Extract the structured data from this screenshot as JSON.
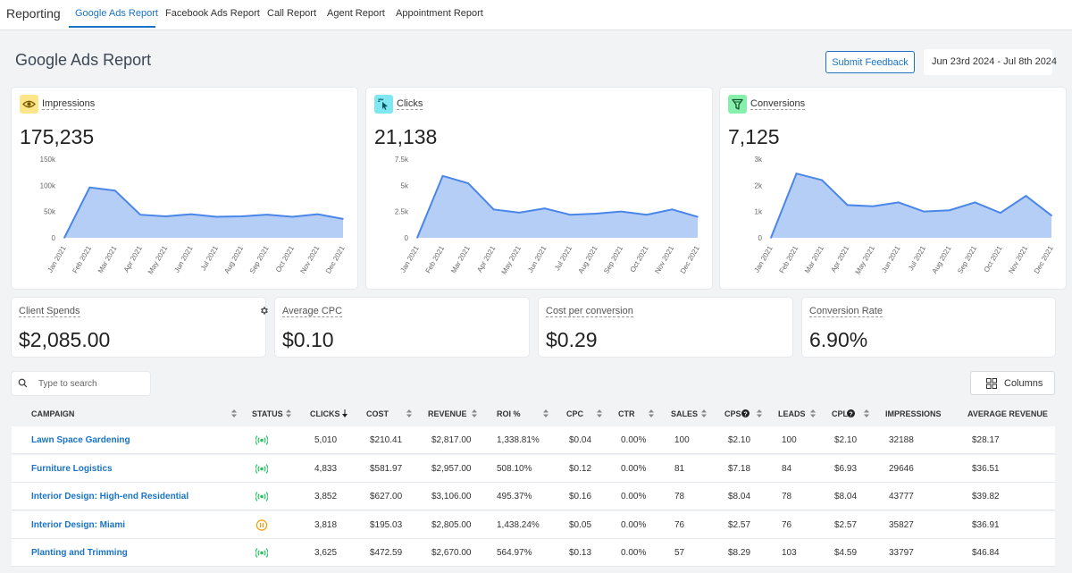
{
  "nav": {
    "brand": "Reporting",
    "tabs": [
      "Google Ads Report",
      "Facebook Ads Report",
      "Call Report",
      "Agent Report",
      "Appointment Report"
    ],
    "active_tab": "Google Ads Report"
  },
  "page": {
    "title": "Google Ads Report",
    "feedback_label": "Submit Feedback",
    "date_range": "Jun 23rd 2024 - Jul 8th 2024"
  },
  "colors": {
    "accent": "#1a73c6",
    "chart_line": "#4a86e8",
    "chart_fill": "#a7c5f4",
    "impressions_icon_bg": "#fde68a",
    "clicks_icon_bg": "#7ee7f2",
    "conversions_icon_bg": "#86efac",
    "status_active": "#22c55e",
    "status_paused": "#f59e0b"
  },
  "summary_cards": [
    {
      "label": "Impressions",
      "value": "175,235",
      "icon": "eye-icon"
    },
    {
      "label": "Clicks",
      "value": "21,138",
      "icon": "cursor-click-icon"
    },
    {
      "label": "Conversions",
      "value": "7,125",
      "icon": "funnel-icon"
    }
  ],
  "chart_data": [
    {
      "type": "area",
      "categories": [
        "Jan 2021",
        "Feb 2021",
        "Mar 2021",
        "Apr 2021",
        "May 2021",
        "Jun 2021",
        "Jul 2021",
        "Aug 2021",
        "Sep 2021",
        "Oct 2021",
        "Nov 2021",
        "Dec 2021"
      ],
      "values": [
        0,
        96000,
        90000,
        44000,
        41000,
        45000,
        40000,
        41000,
        44000,
        40000,
        45000,
        36000
      ],
      "yticks": [
        "0",
        "50k",
        "100k",
        "150k"
      ],
      "ylim": [
        0,
        150000
      ]
    },
    {
      "type": "area",
      "categories": [
        "Jan 2021",
        "Feb 2021",
        "Mar 2021",
        "Apr 2021",
        "May 2021",
        "Jun 2021",
        "Jul 2021",
        "Aug 2021",
        "Sep 2021",
        "Oct 2021",
        "Nov 2021",
        "Dec 2021"
      ],
      "values": [
        0,
        5900,
        5200,
        2700,
        2400,
        2800,
        2200,
        2300,
        2500,
        2200,
        2700,
        2000
      ],
      "yticks": [
        "0",
        "2.5k",
        "5k",
        "7.5k"
      ],
      "ylim": [
        0,
        7500
      ]
    },
    {
      "type": "area",
      "categories": [
        "Jan 2021",
        "Feb 2021",
        "Mar 2021",
        "Apr 2021",
        "May 2021",
        "Jun 2021",
        "Jul 2021",
        "Aug 2021",
        "Sep 2021",
        "Oct 2021",
        "Nov 2021",
        "Dec 2021"
      ],
      "values": [
        0,
        2450,
        2200,
        1250,
        1200,
        1350,
        1000,
        1050,
        1350,
        950,
        1600,
        850
      ],
      "yticks": [
        "0",
        "1k",
        "2k",
        "3k"
      ],
      "ylim": [
        0,
        3000
      ]
    }
  ],
  "metrics": [
    {
      "label": "Client Spends",
      "value": "$2,085.00"
    },
    {
      "label": "Average CPC",
      "value": "$0.10"
    },
    {
      "label": "Cost per conversion",
      "value": "$0.29"
    },
    {
      "label": "Conversion Rate",
      "value": "6.90%"
    }
  ],
  "table": {
    "search_placeholder": "Type to search",
    "columns_label": "Columns",
    "headers": [
      "CAMPAIGN",
      "STATUS",
      "CLICKS",
      "COST",
      "REVENUE",
      "ROI %",
      "CPC",
      "CTR",
      "SALES",
      "CPS",
      "LEADS",
      "CPL",
      "IMPRESSIONS",
      "AVERAGE REVENUE"
    ],
    "rows": [
      {
        "campaign": "Lawn Space Gardening",
        "status": "active",
        "clicks": "5,010",
        "cost": "$210.41",
        "revenue": "$2,817.00",
        "roi": "1,338.81%",
        "cpc": "$0.04",
        "ctr": "0.00%",
        "sales": "100",
        "cps": "$2.10",
        "leads": "100",
        "cpl": "$2.10",
        "impressions": "32188",
        "avg_revenue": "$28.17"
      },
      {
        "campaign": "Furniture Logistics",
        "status": "active",
        "clicks": "4,833",
        "cost": "$581.97",
        "revenue": "$2,957.00",
        "roi": "508.10%",
        "cpc": "$0.12",
        "ctr": "0.00%",
        "sales": "81",
        "cps": "$7.18",
        "leads": "84",
        "cpl": "$6.93",
        "impressions": "29646",
        "avg_revenue": "$36.51"
      },
      {
        "campaign": "Interior Design: High-end Residential",
        "status": "active",
        "clicks": "3,852",
        "cost": "$627.00",
        "revenue": "$3,106.00",
        "roi": "495.37%",
        "cpc": "$0.16",
        "ctr": "0.00%",
        "sales": "78",
        "cps": "$8.04",
        "leads": "78",
        "cpl": "$8.04",
        "impressions": "43777",
        "avg_revenue": "$39.82"
      },
      {
        "campaign": "Interior Design: Miami",
        "status": "paused",
        "clicks": "3,818",
        "cost": "$195.03",
        "revenue": "$2,805.00",
        "roi": "1,438.24%",
        "cpc": "$0.05",
        "ctr": "0.00%",
        "sales": "76",
        "cps": "$2.57",
        "leads": "76",
        "cpl": "$2.57",
        "impressions": "35827",
        "avg_revenue": "$36.91"
      },
      {
        "campaign": "Planting and Trimming",
        "status": "active",
        "clicks": "3,625",
        "cost": "$472.59",
        "revenue": "$2,670.00",
        "roi": "564.97%",
        "cpc": "$0.13",
        "ctr": "0.00%",
        "sales": "57",
        "cps": "$8.29",
        "leads": "103",
        "cpl": "$4.59",
        "impressions": "33797",
        "avg_revenue": "$46.84"
      }
    ]
  }
}
